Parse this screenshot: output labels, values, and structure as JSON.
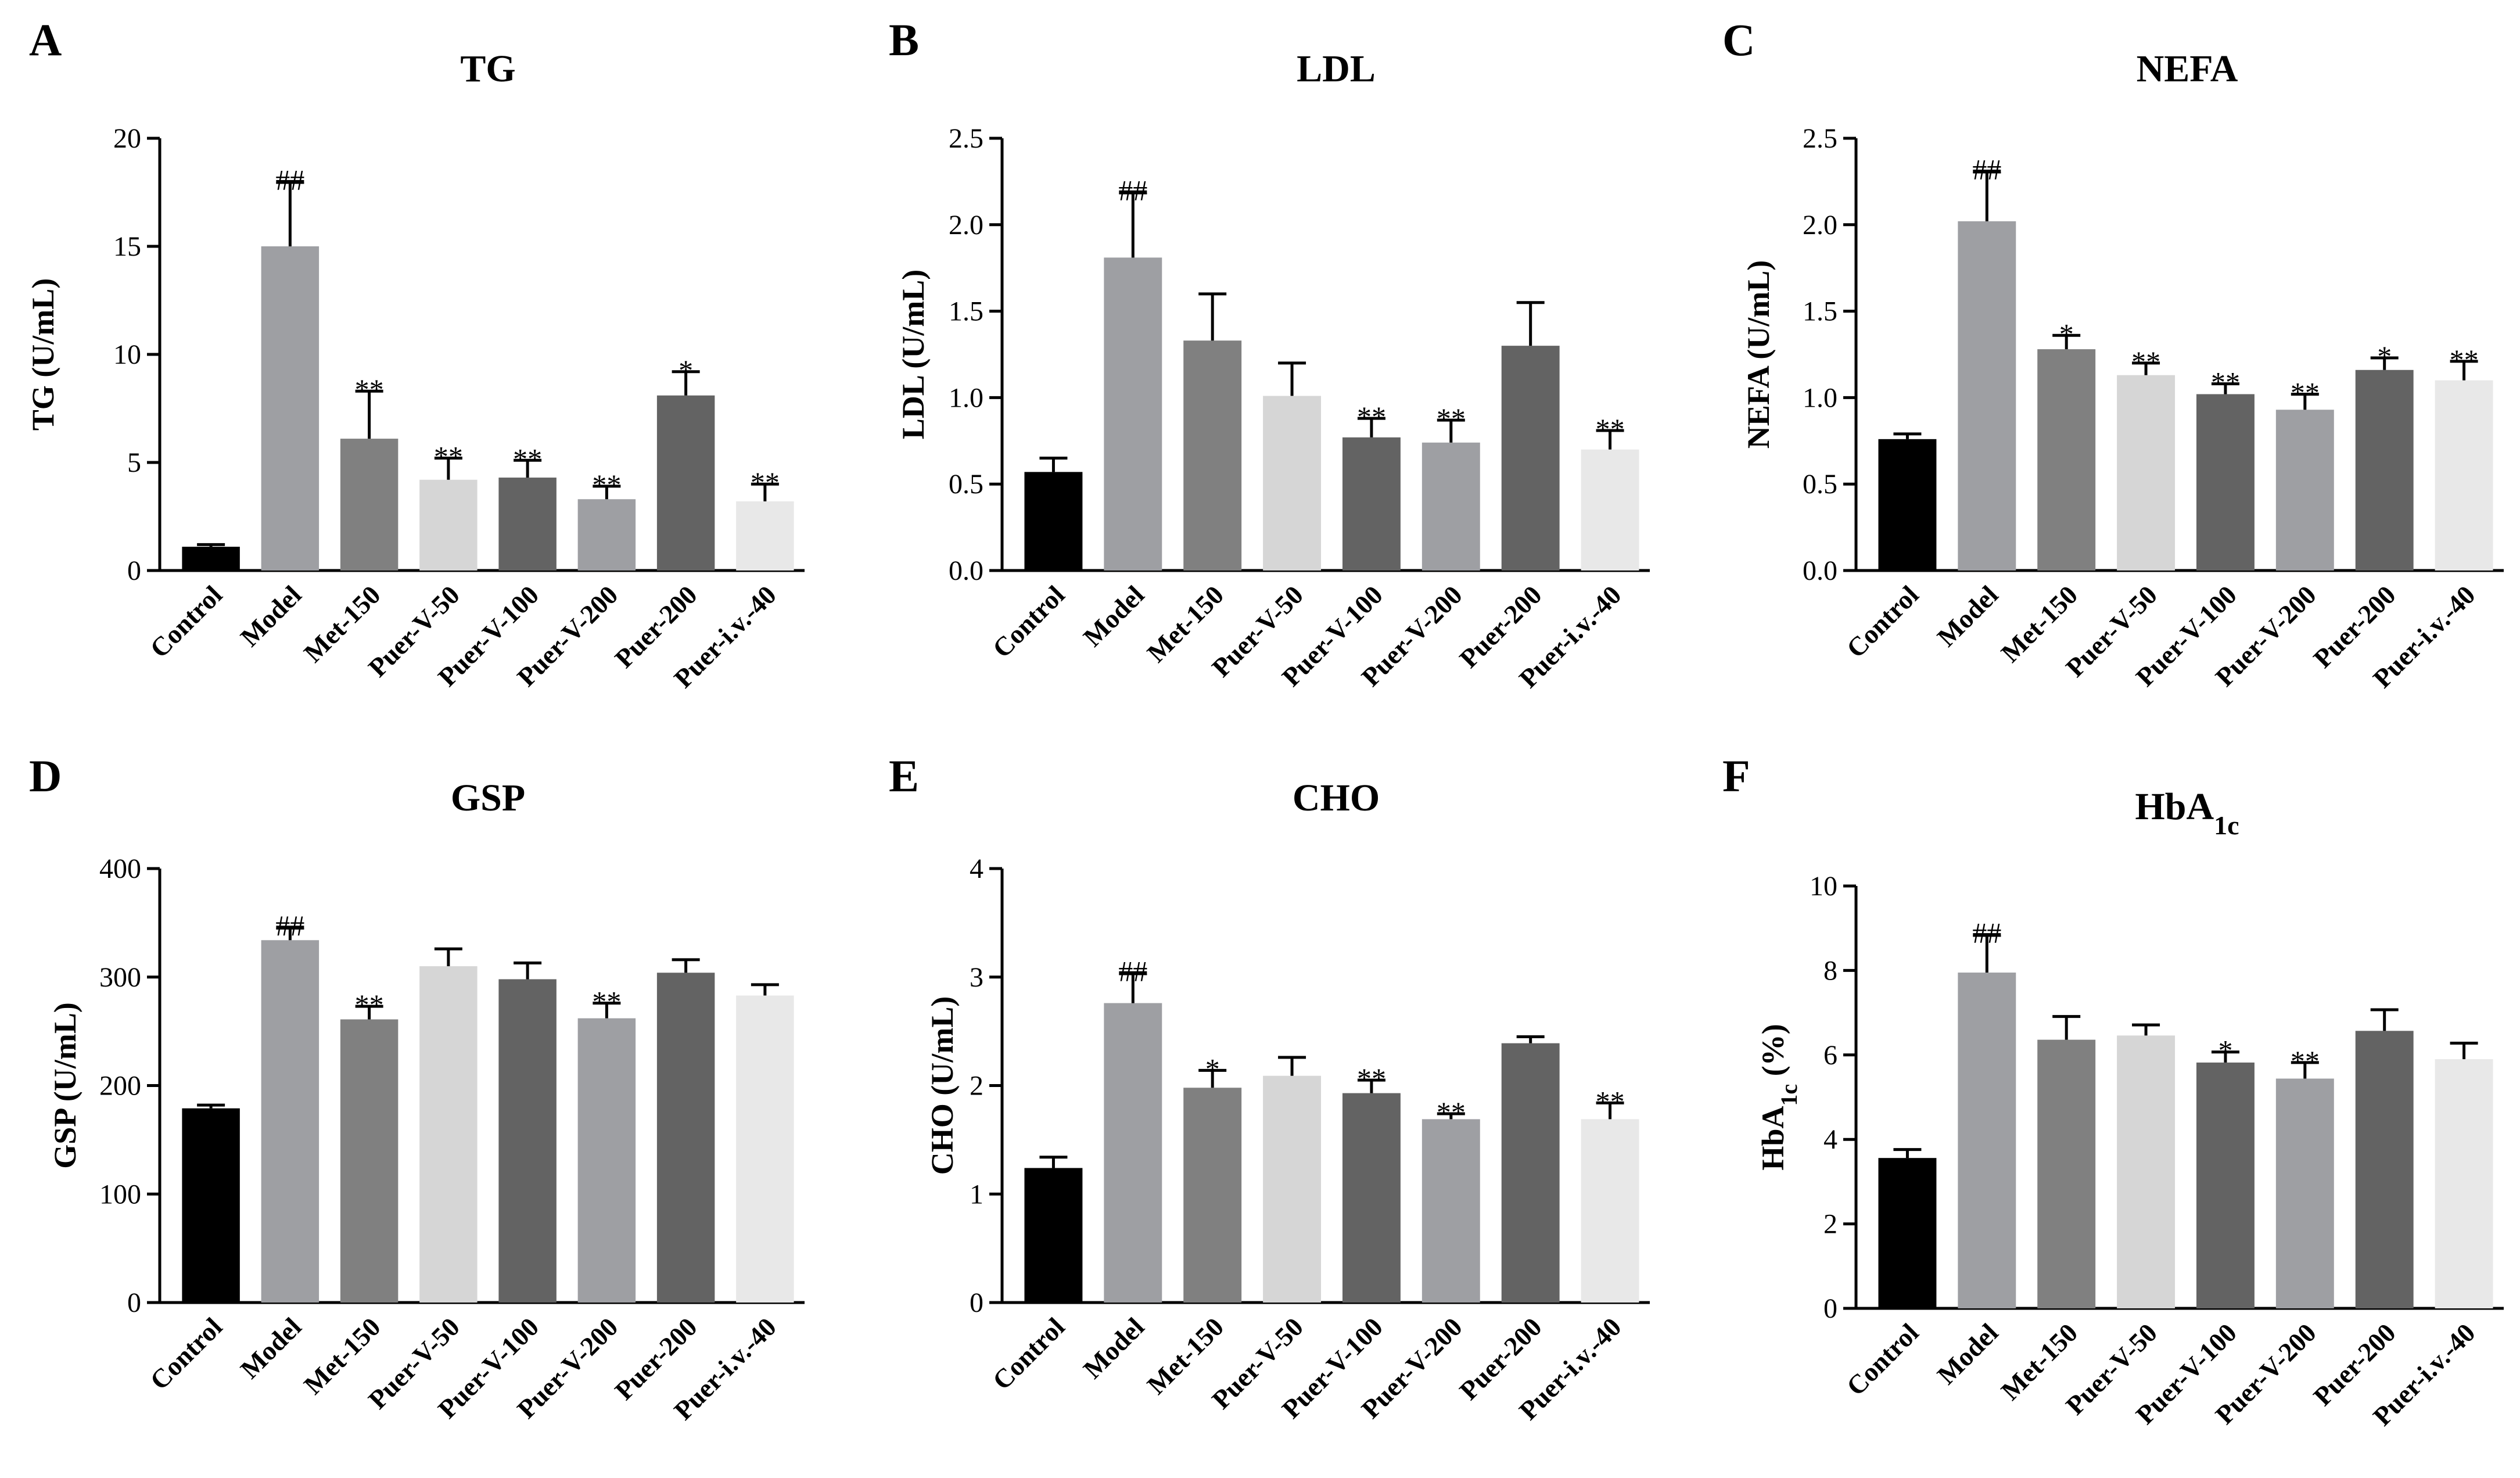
{
  "chart_data": [
    {
      "panel": "A",
      "type": "bar",
      "title": "TG",
      "ylabel": "TG (U/mL)",
      "xlabel": "",
      "categories": [
        "Control",
        "Model",
        "Met-150",
        "Puer-V-50",
        "Puer-V-100",
        "Puer-V-200",
        "Puer-200",
        "Puer-i.v.-40"
      ],
      "values": [
        1.1,
        15.0,
        6.1,
        4.2,
        4.3,
        3.3,
        8.1,
        3.2
      ],
      "errors": [
        0.1,
        3.0,
        2.2,
        1.0,
        0.8,
        0.6,
        1.1,
        0.8
      ],
      "annotations": [
        "",
        "##",
        "**",
        "**",
        "**",
        "**",
        "*",
        "**"
      ],
      "ylim": [
        0,
        20
      ],
      "yticks": [
        0,
        5,
        10,
        15,
        20
      ],
      "ytick_labels": [
        "0",
        "5",
        "10",
        "15",
        "20"
      ]
    },
    {
      "panel": "B",
      "type": "bar",
      "title": "LDL",
      "ylabel": "LDL (U/mL)",
      "xlabel": "",
      "categories": [
        "Control",
        "Model",
        "Met-150",
        "Puer-V-50",
        "Puer-V-100",
        "Puer-V-200",
        "Puer-200",
        "Puer-i.v.-40"
      ],
      "values": [
        0.57,
        1.81,
        1.33,
        1.01,
        0.77,
        0.74,
        1.3,
        0.7
      ],
      "errors": [
        0.08,
        0.38,
        0.27,
        0.19,
        0.11,
        0.13,
        0.25,
        0.11
      ],
      "annotations": [
        "",
        "##",
        "",
        "",
        "**",
        "**",
        "",
        "**"
      ],
      "ylim": [
        0,
        2.5
      ],
      "yticks": [
        0,
        0.5,
        1.0,
        1.5,
        2.0,
        2.5
      ],
      "ytick_labels": [
        "0.0",
        "0.5",
        "1.0",
        "1.5",
        "2.0",
        "2.5"
      ]
    },
    {
      "panel": "C",
      "type": "bar",
      "title": "NEFA",
      "ylabel": "NEFA (U/mL)",
      "xlabel": "",
      "categories": [
        "Control",
        "Model",
        "Met-150",
        "Puer-V-50",
        "Puer-V-100",
        "Puer-V-200",
        "Puer-200",
        "Puer-i.v.-40"
      ],
      "values": [
        0.76,
        2.02,
        1.28,
        1.13,
        1.02,
        0.93,
        1.16,
        1.1
      ],
      "errors": [
        0.03,
        0.29,
        0.08,
        0.07,
        0.06,
        0.09,
        0.07,
        0.11
      ],
      "annotations": [
        "",
        "##",
        "*",
        "**",
        "**",
        "**",
        "*",
        "**"
      ],
      "ylim": [
        0,
        2.5
      ],
      "yticks": [
        0,
        0.5,
        1.0,
        1.5,
        2.0,
        2.5
      ],
      "ytick_labels": [
        "0.0",
        "0.5",
        "1.0",
        "1.5",
        "2.0",
        "2.5"
      ]
    },
    {
      "panel": "D",
      "type": "bar",
      "title": "GSP",
      "ylabel": "GSP (U/mL)",
      "xlabel": "",
      "categories": [
        "Control",
        "Model",
        "Met-150",
        "Puer-V-50",
        "Puer-V-100",
        "Puer-V-200",
        "Puer-200",
        "Puer-i.v.-40"
      ],
      "values": [
        179,
        334,
        261,
        310,
        298,
        262,
        304,
        283
      ],
      "errors": [
        3,
        12,
        12,
        16,
        15,
        14,
        12,
        10
      ],
      "annotations": [
        "",
        "##",
        "**",
        "",
        "",
        "**",
        "",
        ""
      ],
      "ylim": [
        0,
        400
      ],
      "yticks": [
        0,
        100,
        200,
        300,
        400
      ],
      "ytick_labels": [
        "0",
        "100",
        "200",
        "300",
        "400"
      ]
    },
    {
      "panel": "E",
      "type": "bar",
      "title": "CHO",
      "ylabel": "CHO (U/mL)",
      "xlabel": "",
      "categories": [
        "Control",
        "Model",
        "Met-150",
        "Puer-V-50",
        "Puer-V-100",
        "Puer-V-200",
        "Puer-200",
        "Puer-i.v.-40"
      ],
      "values": [
        1.24,
        2.76,
        1.98,
        2.09,
        1.93,
        1.69,
        2.39,
        1.69
      ],
      "errors": [
        0.1,
        0.28,
        0.16,
        0.17,
        0.12,
        0.05,
        0.06,
        0.15
      ],
      "annotations": [
        "",
        "##",
        "*",
        "",
        "**",
        "**",
        "",
        "**"
      ],
      "ylim": [
        0,
        4
      ],
      "yticks": [
        0,
        1,
        2,
        3,
        4
      ],
      "ytick_labels": [
        "0",
        "1",
        "2",
        "3",
        "4"
      ]
    },
    {
      "panel": "F",
      "type": "bar",
      "title_main": "HbA",
      "title_sub": "1c",
      "ylabel_main": "HbA",
      "ylabel_sub": "1c",
      "ylabel_suffix": " (%)",
      "xlabel": "",
      "categories": [
        "Control",
        "Model",
        "Met-150",
        "Puer-V-50",
        "Puer-V-100",
        "Puer-V-200",
        "Puer-200",
        "Puer-i.v.-40"
      ],
      "values": [
        3.56,
        7.95,
        6.36,
        6.46,
        5.82,
        5.44,
        6.57,
        5.9
      ],
      "errors": [
        0.2,
        0.9,
        0.55,
        0.25,
        0.25,
        0.38,
        0.5,
        0.38
      ],
      "annotations": [
        "",
        "##",
        "",
        "",
        "*",
        "**",
        "",
        ""
      ],
      "ylim": [
        0,
        10
      ],
      "yticks": [
        0,
        2,
        4,
        6,
        8,
        10
      ],
      "ytick_labels": [
        "0",
        "2",
        "4",
        "6",
        "8",
        "10"
      ]
    }
  ],
  "colors": {
    "bars": [
      "#000000",
      "#9e9fa3",
      "#808080",
      "#d6d6d6",
      "#636363",
      "#9e9fa3",
      "#636363",
      "#e8e8e8"
    ],
    "axis": "#000000",
    "text": "#000000"
  }
}
